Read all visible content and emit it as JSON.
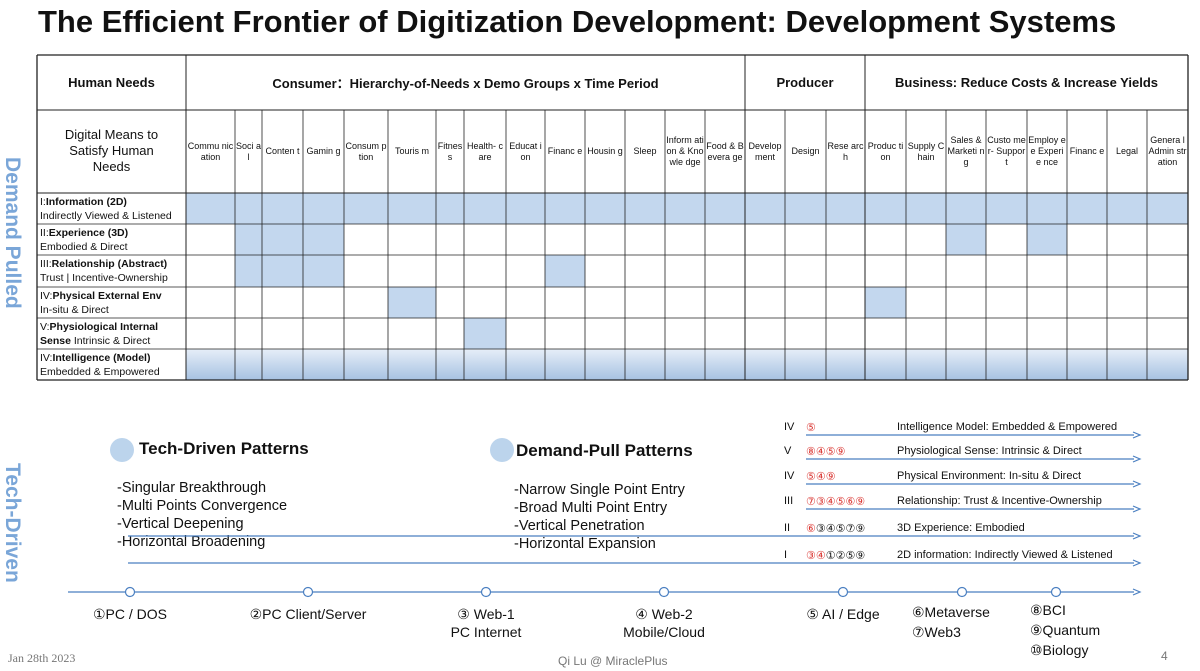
{
  "title": "The Efficient Frontier of Digitization Development: Development Systems",
  "side_labels": {
    "demand": "Demand Pulled",
    "tech": "Tech-Driven"
  },
  "table": {
    "groups": {
      "human_needs": "Human Needs",
      "consumer": "Consumer：Hierarchy-of-Needs x Demo Groups x Time Period",
      "producer": "Producer",
      "business": "Business: Reduce Costs & Increase Yields"
    },
    "digital_means": "Digital Means to Satisfy Human Needs",
    "columns": [
      "Commu nication",
      "Soci al",
      "Conten t",
      "Gamin g",
      "Consum ption",
      "Touris m",
      "Fitnes s",
      "Health- care",
      "Educat ion",
      "Financ e",
      "Housin g",
      "Sleep",
      "Inform ation & Knowle dge",
      "Food & Bevera ge",
      "Develop ment",
      "Design",
      "Rese arch",
      "Produc tion",
      "Supply Chain",
      "Sales & Marketi ng",
      "Custo mer- Suppor t",
      "Employ ee Experie nce",
      "Financ e",
      "Legal",
      "Genera l Admin stration"
    ],
    "rows": [
      {
        "prefix": "I:",
        "bold": "Information (2D)",
        "sub": "Indirectly Viewed & Listened"
      },
      {
        "prefix": "II:",
        "bold": "Experience (3D)",
        "sub": "Embodied & Direct"
      },
      {
        "prefix": "III:",
        "bold": "Relationship (Abstract)",
        "sub": "Trust | Incentive-Ownership"
      },
      {
        "prefix": "IV:",
        "bold": "Physical External Env",
        "sub": "In-situ & Direct"
      },
      {
        "prefix": "V:",
        "bold": "Physiological Internal",
        "bold2": "Sense",
        "sub": " Intrinsic & Direct"
      },
      {
        "prefix": "IV:",
        "bold": "Intelligence (Model)",
        "sub": "Embedded & Empowered"
      }
    ],
    "highlights": [
      [
        0,
        1,
        2,
        3,
        4,
        5,
        6,
        7,
        8,
        9,
        10,
        11,
        12,
        13,
        14,
        15,
        16,
        17,
        18,
        19,
        20,
        21,
        22,
        23,
        24
      ],
      [
        1,
        2,
        3,
        19,
        21
      ],
      [
        1,
        2,
        3,
        9
      ],
      [
        5,
        17
      ],
      [
        7
      ],
      [
        0,
        1,
        2,
        3,
        4,
        5,
        6,
        7,
        8,
        9,
        10,
        11,
        12,
        13,
        14,
        15,
        16,
        17,
        18,
        19,
        20,
        21,
        22,
        23,
        24
      ]
    ],
    "highlight_color": "#c3d7ee"
  },
  "tech_patterns": {
    "title": "Tech-Driven Patterns",
    "items": [
      "-Singular Breakthrough",
      "-Multi Points Convergence",
      "-Vertical Deepening",
      "-Horizontal Broadening"
    ]
  },
  "demand_patterns": {
    "title": "Demand-Pull Patterns",
    "items": [
      "-Narrow Single Point Entry",
      "-Broad Multi Point Entry",
      "-Vertical Penetration",
      "-Horizontal Expansion"
    ]
  },
  "levels": [
    {
      "level": "IV",
      "red": "⑤",
      "black": "",
      "desc": "Intelligence Model: Embedded & Empowered"
    },
    {
      "level": "V",
      "red": "⑧④⑤⑨",
      "black": "",
      "desc": "Physiological Sense: Intrinsic & Direct"
    },
    {
      "level": "IV",
      "red": "⑤④⑨",
      "black": "",
      "desc": "Physical Environment: In-situ & Direct"
    },
    {
      "level": "III",
      "red": "⑦③④⑤⑥⑨",
      "black": "",
      "desc": "Relationship: Trust & Incentive-Ownership"
    },
    {
      "level": "II",
      "red": "⑥",
      "black": "③④⑤⑦⑨",
      "desc": "3D Experience: Embodied"
    },
    {
      "level": "I",
      "red": "③④",
      "black": "①②⑤⑨",
      "desc": "2D information: Indirectly Viewed & Listened"
    }
  ],
  "timeline": {
    "stages": [
      {
        "label": "①PC / DOS",
        "sub": ""
      },
      {
        "label": "②PC Client/Server",
        "sub": ""
      },
      {
        "label": "③ Web-1",
        "sub": "PC Internet"
      },
      {
        "label": "④ Web-2",
        "sub": "Mobile/Cloud"
      },
      {
        "label": "⑤ AI / Edge",
        "sub": ""
      },
      {
        "label": "⑥Metaverse",
        "sub": "⑦Web3"
      },
      {
        "label": "⑧BCI",
        "sub": "⑨Quantum",
        "sub2": "⑩Biology"
      }
    ]
  },
  "footer": {
    "date": "Jan 28th 2023",
    "author": "Qi Lu @ MiraclePlus",
    "page": "4"
  },
  "colors": {
    "accent": "#4a7fc1",
    "side_label": "#7aa6d8",
    "highlight": "#c3d7ee",
    "marker_red": "#d9302c"
  }
}
